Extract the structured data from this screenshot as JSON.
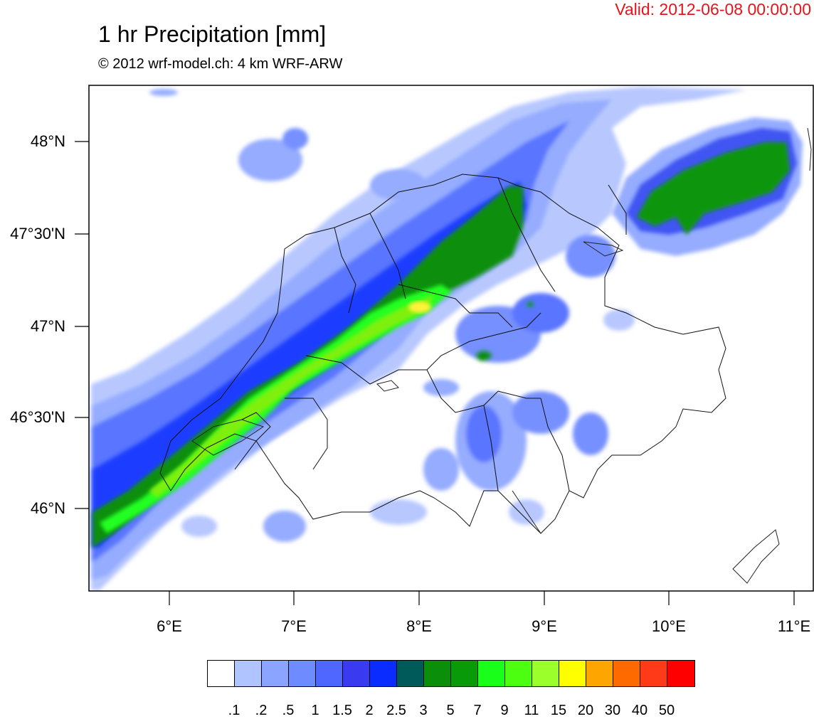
{
  "header": {
    "valid": "Valid: 2012-06-08 00:00:00",
    "title": "1 hr Precipitation [mm]",
    "subtitle": "© 2012 wrf-model.ch: 4 km WRF-ARW"
  },
  "axes": {
    "lon_ticks": [
      "6°E",
      "7°E",
      "8°E",
      "9°E",
      "10°E",
      "11°E"
    ],
    "lat_ticks": [
      "48°N",
      "47°30'N",
      "47°N",
      "46°30'N",
      "46°N"
    ],
    "lon_range": [
      5.45,
      11.15
    ],
    "lat_range": [
      45.55,
      48.3
    ]
  },
  "colorbar": {
    "labels": [
      ".1",
      ".2",
      ".5",
      "1",
      "1.5",
      "2",
      "2.5",
      "3",
      "5",
      "7",
      "9",
      "11",
      "15",
      "20",
      "30",
      "40",
      "50"
    ],
    "colors": [
      "#ffffff",
      "#b0c4ff",
      "#8aa4ff",
      "#6e8cff",
      "#4f67ff",
      "#3a3af0",
      "#0a2cff",
      "#005a5a",
      "#0b8f0b",
      "#099a09",
      "#19ff19",
      "#4cff11",
      "#9aff2a",
      "#ffff00",
      "#ffa500",
      "#ff6a00",
      "#ff3a18",
      "#ff0000"
    ]
  },
  "map": {
    "precip_colors": {
      "c1": "#b8c8ff",
      "c2": "#95acff",
      "c3": "#7690ff",
      "c4": "#5a74ff",
      "c5": "#3f55f2",
      "c6": "#1f3dff",
      "c7": "#0d8f0d",
      "c8": "#079607",
      "c9": "#20ff20",
      "c10": "#7ff00a",
      "c11": "#fff23a"
    }
  }
}
